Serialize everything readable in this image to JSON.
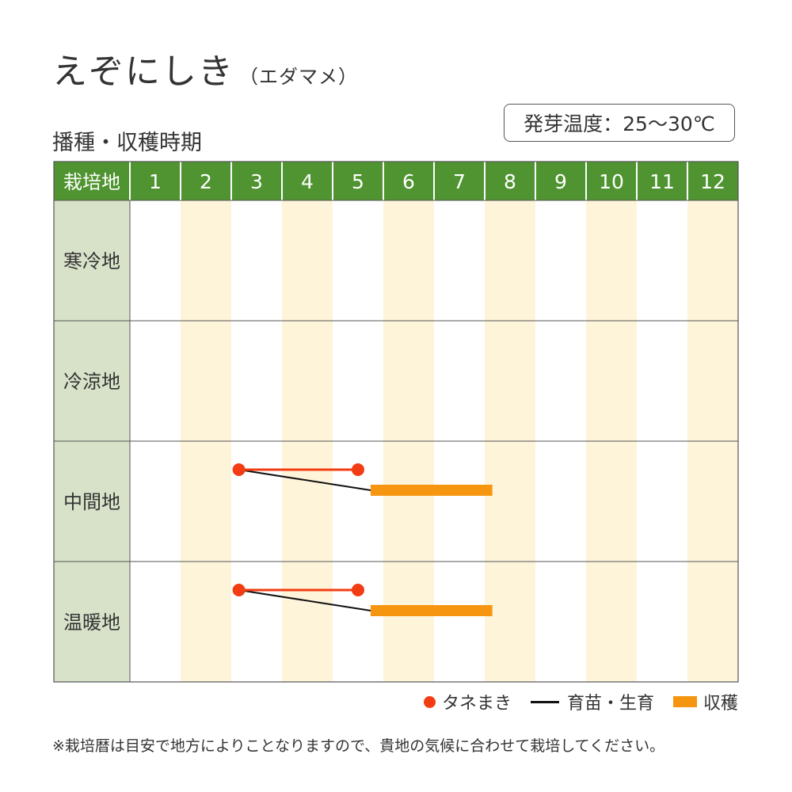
{
  "header": {
    "title": "えぞにしき",
    "subtitle": "（エダマメ）",
    "temperature": "発芽温度：25～30℃",
    "section_title": "播種・収穫時期"
  },
  "colors": {
    "header_bg": "#4f9430",
    "row_label_bg": "#d8e2c9",
    "stripe": "#fdf4da",
    "sowing": "#f23c13",
    "seedling": "#111111",
    "harvest": "#f6950f"
  },
  "chart_data": {
    "type": "gantt",
    "corner_label": "栽培地",
    "months": [
      "1",
      "2",
      "3",
      "4",
      "5",
      "6",
      "7",
      "8",
      "9",
      "10",
      "11",
      "12"
    ],
    "regions": [
      {
        "name": "寒冷地",
        "sowing": null,
        "harvest": null
      },
      {
        "name": "冷涼地",
        "sowing": null,
        "harvest": null
      },
      {
        "name": "中間地",
        "sowing": [
          3.15,
          5.5
        ],
        "harvest": [
          5.75,
          8.15
        ]
      },
      {
        "name": "温暖地",
        "sowing": [
          3.15,
          5.5
        ],
        "harvest": [
          5.75,
          8.15
        ]
      }
    ],
    "legend": [
      {
        "key": "sowing",
        "label": "タネまき"
      },
      {
        "key": "seedling",
        "label": "育苗・生育"
      },
      {
        "key": "harvest",
        "label": "収穫"
      }
    ]
  },
  "footnote": "※栽培暦は目安で地方によりことなりますので、貴地の気候に合わせて栽培してください。"
}
